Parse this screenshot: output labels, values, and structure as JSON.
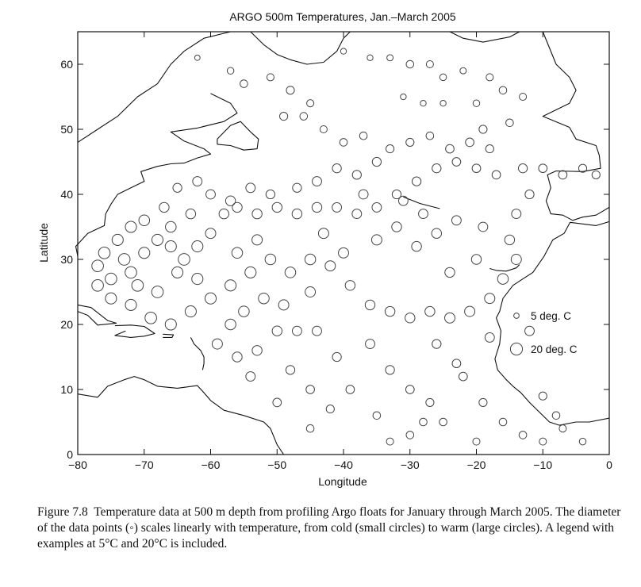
{
  "chart_data": {
    "type": "scatter",
    "title": "ARGO 500m Temperatures, Jan.–March 2005",
    "xlabel": "Longitude",
    "ylabel": "Latitude",
    "xlim": [
      -80,
      0
    ],
    "ylim": [
      0,
      65
    ],
    "xticks": [
      -80,
      -70,
      -60,
      -50,
      -40,
      -30,
      -20,
      -10,
      0
    ],
    "yticks": [
      0,
      10,
      20,
      30,
      40,
      50,
      60
    ],
    "grid": false,
    "legend_position": "right",
    "size_encoding": "temperature",
    "legend": [
      {
        "label": "5 deg. C",
        "temperature": 5
      },
      {
        "label": "20 deg. C",
        "temperature": 20
      }
    ],
    "points": [
      [
        -62,
        61,
        5
      ],
      [
        -57,
        59,
        8
      ],
      [
        -55,
        57,
        10
      ],
      [
        -51,
        58,
        9
      ],
      [
        -48,
        56,
        11
      ],
      [
        -45,
        54,
        9
      ],
      [
        -40,
        62,
        6
      ],
      [
        -36,
        61,
        6
      ],
      [
        -33,
        61,
        7
      ],
      [
        -30,
        60,
        10
      ],
      [
        -27,
        60,
        9
      ],
      [
        -25,
        58,
        8
      ],
      [
        -22,
        59,
        7
      ],
      [
        -18,
        58,
        9
      ],
      [
        -16,
        56,
        10
      ],
      [
        -13,
        55,
        9
      ],
      [
        -20,
        54,
        8
      ],
      [
        -25,
        54,
        6
      ],
      [
        -28,
        54,
        6
      ],
      [
        -31,
        55,
        6
      ],
      [
        -46,
        52,
        10
      ],
      [
        -49,
        52,
        11
      ],
      [
        -43,
        50,
        9
      ],
      [
        -40,
        48,
        10
      ],
      [
        -37,
        49,
        10
      ],
      [
        -30,
        48,
        11
      ],
      [
        -27,
        49,
        10
      ],
      [
        -24,
        47,
        12
      ],
      [
        -21,
        48,
        12
      ],
      [
        -18,
        47,
        11
      ],
      [
        -15,
        51,
        10
      ],
      [
        -19,
        50,
        11
      ],
      [
        -33,
        47,
        11
      ],
      [
        -35,
        45,
        13
      ],
      [
        -38,
        43,
        13
      ],
      [
        -41,
        44,
        13
      ],
      [
        -44,
        42,
        14
      ],
      [
        -47,
        41,
        13
      ],
      [
        -51,
        40,
        13
      ],
      [
        -54,
        41,
        14
      ],
      [
        -57,
        39,
        15
      ],
      [
        -60,
        40,
        14
      ],
      [
        -62,
        42,
        14
      ],
      [
        -65,
        41,
        13
      ],
      [
        -67,
        38,
        15
      ],
      [
        -70,
        36,
        17
      ],
      [
        -72,
        35,
        18
      ],
      [
        -74,
        33,
        18
      ],
      [
        -76,
        31,
        19
      ],
      [
        -77,
        29,
        19
      ],
      [
        -75,
        27,
        19
      ],
      [
        -72,
        28,
        19
      ],
      [
        -70,
        31,
        18
      ],
      [
        -68,
        33,
        18
      ],
      [
        -66,
        32,
        18
      ],
      [
        -64,
        30,
        19
      ],
      [
        -62,
        32,
        18
      ],
      [
        -60,
        34,
        16
      ],
      [
        -58,
        37,
        15
      ],
      [
        -56,
        38,
        15
      ],
      [
        -53,
        37,
        15
      ],
      [
        -50,
        38,
        15
      ],
      [
        -47,
        37,
        15
      ],
      [
        -44,
        38,
        15
      ],
      [
        -41,
        38,
        14
      ],
      [
        -38,
        37,
        14
      ],
      [
        -35,
        38,
        14
      ],
      [
        -32,
        40,
        13
      ],
      [
        -29,
        42,
        13
      ],
      [
        -26,
        44,
        13
      ],
      [
        -23,
        45,
        12
      ],
      [
        -20,
        44,
        12
      ],
      [
        -17,
        43,
        12
      ],
      [
        -13,
        44,
        13
      ],
      [
        -10,
        44,
        12
      ],
      [
        -7,
        43,
        12
      ],
      [
        -4,
        44,
        11
      ],
      [
        -2,
        43,
        11
      ],
      [
        -12,
        40,
        13
      ],
      [
        -14,
        37,
        14
      ],
      [
        -15,
        33,
        15
      ],
      [
        -14,
        30,
        16
      ],
      [
        -16,
        27,
        17
      ],
      [
        -18,
        24,
        16
      ],
      [
        -21,
        22,
        16
      ],
      [
        -24,
        21,
        16
      ],
      [
        -27,
        22,
        15
      ],
      [
        -30,
        21,
        15
      ],
      [
        -33,
        22,
        15
      ],
      [
        -36,
        23,
        15
      ],
      [
        -39,
        26,
        15
      ],
      [
        -42,
        29,
        16
      ],
      [
        -45,
        30,
        17
      ],
      [
        -48,
        28,
        17
      ],
      [
        -51,
        30,
        17
      ],
      [
        -54,
        28,
        18
      ],
      [
        -57,
        26,
        18
      ],
      [
        -60,
        24,
        18
      ],
      [
        -63,
        22,
        18
      ],
      [
        -66,
        20,
        18
      ],
      [
        -69,
        21,
        19
      ],
      [
        -72,
        23,
        18
      ],
      [
        -75,
        24,
        18
      ],
      [
        -77,
        26,
        19
      ],
      [
        -59,
        17,
        16
      ],
      [
        -56,
        15,
        15
      ],
      [
        -53,
        16,
        15
      ],
      [
        -50,
        19,
        15
      ],
      [
        -47,
        19,
        14
      ],
      [
        -44,
        19,
        14
      ],
      [
        -48,
        13,
        13
      ],
      [
        -45,
        10,
        12
      ],
      [
        -42,
        7,
        11
      ],
      [
        -45,
        4,
        10
      ],
      [
        -36,
        17,
        14
      ],
      [
        -33,
        13,
        13
      ],
      [
        -30,
        10,
        12
      ],
      [
        -27,
        8,
        11
      ],
      [
        -25,
        5,
        10
      ],
      [
        -30,
        3,
        10
      ],
      [
        -33,
        2,
        9
      ],
      [
        -22,
        12,
        12
      ],
      [
        -19,
        8,
        11
      ],
      [
        -16,
        5,
        10
      ],
      [
        -13,
        3,
        10
      ],
      [
        -10,
        2,
        9
      ],
      [
        -7,
        4,
        9
      ],
      [
        -4,
        2,
        8
      ],
      [
        -20,
        2,
        9
      ],
      [
        -23,
        14,
        12
      ],
      [
        -26,
        17,
        13
      ],
      [
        -39,
        10,
        12
      ],
      [
        -41,
        15,
        13
      ],
      [
        -35,
        33,
        16
      ],
      [
        -32,
        35,
        15
      ],
      [
        -29,
        32,
        15
      ],
      [
        -26,
        34,
        15
      ],
      [
        -23,
        36,
        14
      ],
      [
        -19,
        35,
        14
      ],
      [
        -31,
        39,
        14
      ],
      [
        -28,
        37,
        14
      ],
      [
        -37,
        40,
        14
      ],
      [
        -40,
        31,
        16
      ],
      [
        -43,
        34,
        16
      ],
      [
        -53,
        33,
        16
      ],
      [
        -56,
        31,
        17
      ],
      [
        -62,
        27,
        18
      ],
      [
        -65,
        28,
        18
      ],
      [
        -68,
        25,
        19
      ],
      [
        -71,
        26,
        19
      ],
      [
        -73,
        30,
        19
      ],
      [
        -66,
        35,
        17
      ],
      [
        -63,
        37,
        15
      ],
      [
        -55,
        22,
        17
      ],
      [
        -52,
        24,
        17
      ],
      [
        -49,
        23,
        16
      ],
      [
        -45,
        25,
        16
      ],
      [
        -57,
        20,
        17
      ],
      [
        -54,
        12,
        14
      ],
      [
        -50,
        8,
        12
      ],
      [
        -35,
        6,
        10
      ],
      [
        -28,
        5,
        10
      ],
      [
        -12,
        19,
        14
      ],
      [
        -10,
        9,
        11
      ],
      [
        -8,
        6,
        10
      ],
      [
        -18,
        18,
        14
      ],
      [
        -20,
        30,
        15
      ],
      [
        -24,
        28,
        15
      ]
    ]
  },
  "caption": {
    "label": "Figure 7.8",
    "text": "Temperature data at 500 m depth from profiling Argo floats for January through March 2005. The diameter of the data points (◦) scales linearly with temperature, from cold (small circles) to warm (large circles). A legend with examples at 5°C and 20°C is included."
  }
}
